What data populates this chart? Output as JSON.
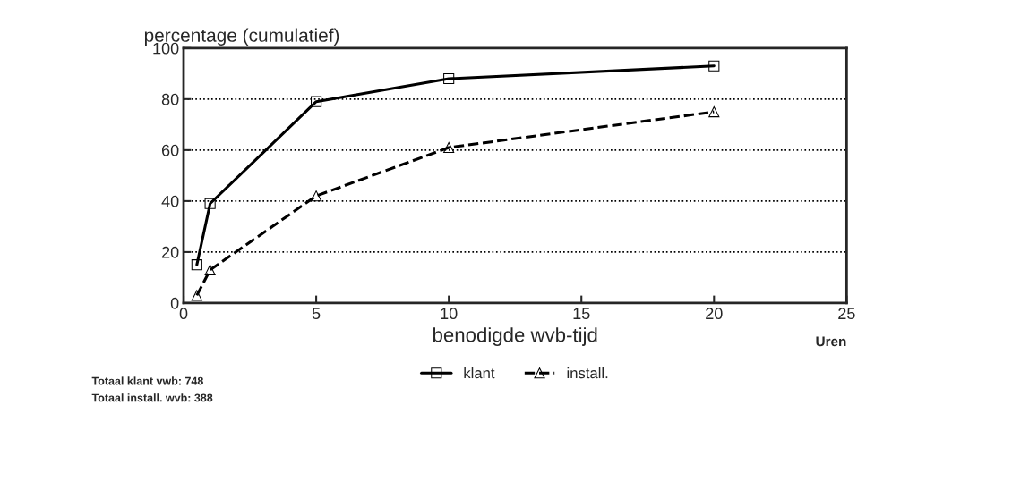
{
  "chart_data": {
    "type": "line",
    "ylabel": "percentage (cumulatief)",
    "xlabel": "benodigde wvb-tijd",
    "x": [
      0.5,
      1,
      5,
      10,
      20
    ],
    "series": [
      {
        "name": "klant",
        "color": "#000000",
        "values": [
          15,
          39,
          79,
          88,
          93
        ],
        "marker": "square",
        "line_style": "solid"
      },
      {
        "name": "install.",
        "color": "#000000",
        "values": [
          3,
          13,
          42,
          61,
          75
        ],
        "marker": "triangle",
        "line_style": "dashed"
      }
    ],
    "xlim": [
      0,
      25
    ],
    "xticks": [
      0,
      5,
      10,
      15,
      20,
      25
    ],
    "ylim": [
      0,
      100
    ],
    "yticks": [
      0,
      20,
      40,
      60,
      80,
      100
    ],
    "grid": "y",
    "legend": "bottom",
    "annotations": [
      "Uren",
      "Totaal klant vwb: 748",
      "Totaal install. wvb: 388"
    ]
  }
}
